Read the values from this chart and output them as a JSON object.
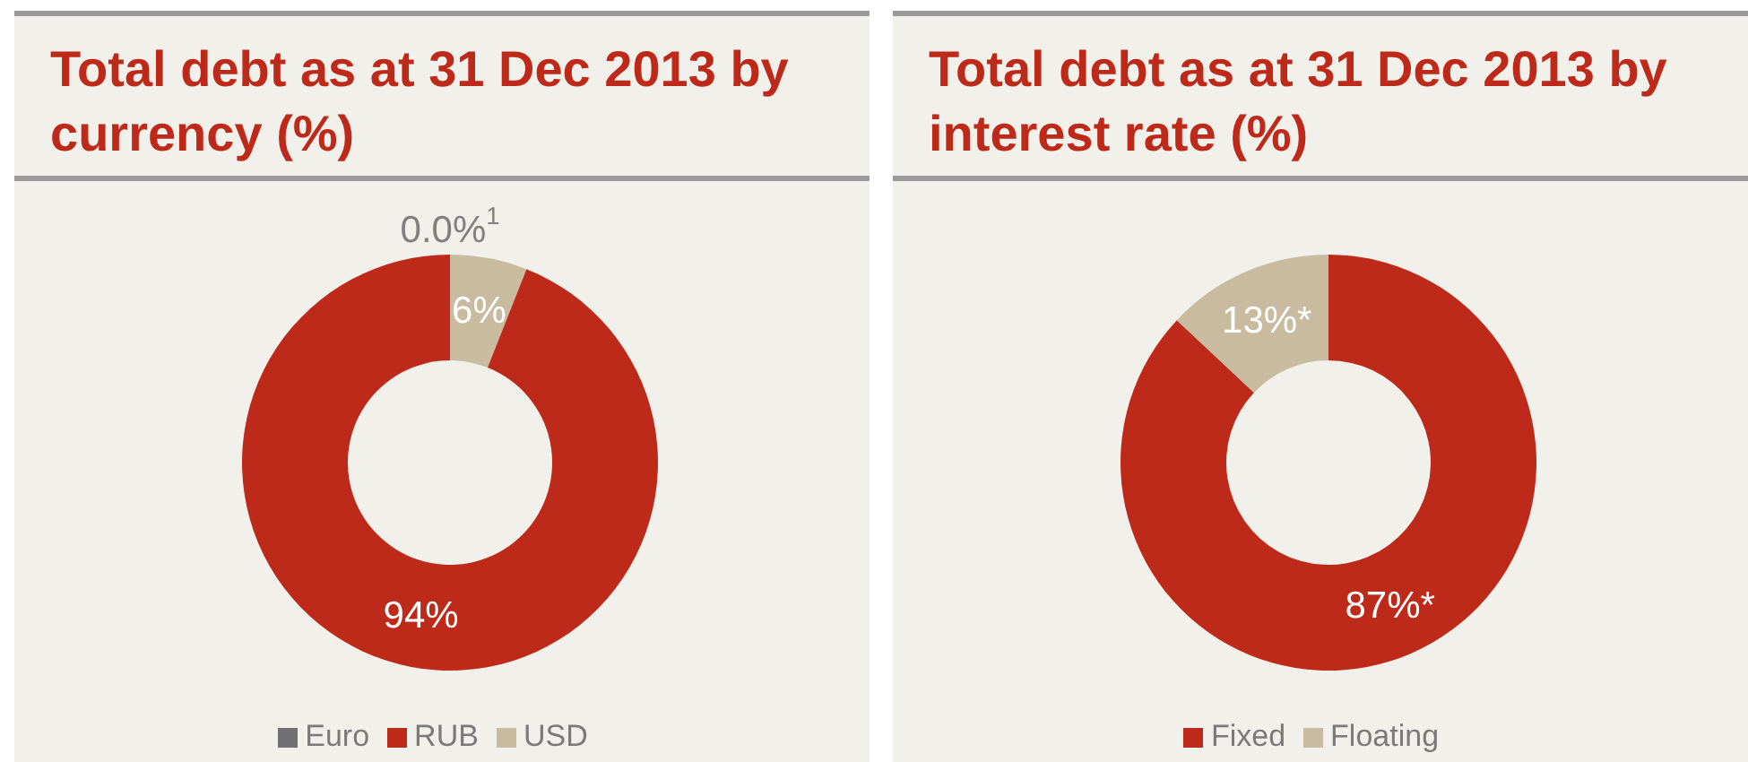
{
  "chart_data": [
    {
      "type": "donut",
      "title": "Total debt as at 31 Dec 2013 by currency (%)",
      "categories": [
        "USD",
        "RUB",
        "Euro"
      ],
      "values": [
        6,
        94,
        0.0
      ],
      "colors": [
        "#c8bba0",
        "#bd2a19",
        "#707070"
      ],
      "value_labels": [
        "6%",
        "94%",
        "0.0%$^{1}$"
      ],
      "legend": "bottom"
    },
    {
      "type": "donut",
      "title": "Total debt as at 31 Dec 2013 by interest rate (%)",
      "categories": [
        "Fixed",
        "Floating"
      ],
      "values": [
        87,
        13
      ],
      "colors": [
        "#bd2a19",
        "#c8bba0"
      ],
      "value_labels": [
        "87%*",
        "13%*"
      ],
      "legend": "bottom"
    }
  ]
}
